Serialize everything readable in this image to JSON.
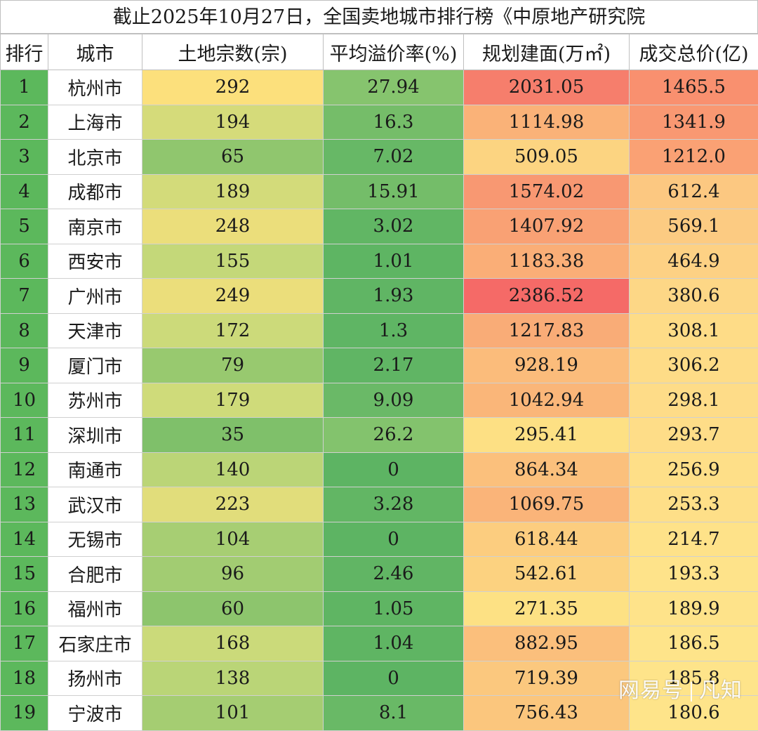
{
  "title": "截止2025年10月27日，全国卖地城市排行榜《中原地产研究院",
  "headers": [
    "排行",
    "城市",
    "土地宗数(宗)",
    "平均溢价率(%)",
    "规划建面(万㎡)",
    "成交总价(亿)"
  ],
  "rows": [
    {
      "rank": "1",
      "city": "杭州市",
      "parcels": "292",
      "premium": "27.94",
      "area": "2031.05",
      "total": "1465.5"
    },
    {
      "rank": "2",
      "city": "上海市",
      "parcels": "194",
      "premium": "16.3",
      "area": "1114.98",
      "total": "1341.9"
    },
    {
      "rank": "3",
      "city": "北京市",
      "parcels": "65",
      "premium": "7.02",
      "area": "509.05",
      "total": "1212.0"
    },
    {
      "rank": "4",
      "city": "成都市",
      "parcels": "189",
      "premium": "15.91",
      "area": "1574.02",
      "total": "612.4"
    },
    {
      "rank": "5",
      "city": "南京市",
      "parcels": "248",
      "premium": "3.02",
      "area": "1407.92",
      "total": "569.1"
    },
    {
      "rank": "6",
      "city": "西安市",
      "parcels": "155",
      "premium": "1.01",
      "area": "1183.38",
      "total": "464.9"
    },
    {
      "rank": "7",
      "city": "广州市",
      "parcels": "249",
      "premium": "1.93",
      "area": "2386.52",
      "total": "380.6"
    },
    {
      "rank": "8",
      "city": "天津市",
      "parcels": "172",
      "premium": "1.3",
      "area": "1217.83",
      "total": "308.1"
    },
    {
      "rank": "9",
      "city": "厦门市",
      "parcels": "79",
      "premium": "2.17",
      "area": "928.19",
      "total": "306.2"
    },
    {
      "rank": "10",
      "city": "苏州市",
      "parcels": "179",
      "premium": "9.09",
      "area": "1042.94",
      "total": "298.1"
    },
    {
      "rank": "11",
      "city": "深圳市",
      "parcels": "35",
      "premium": "26.2",
      "area": "295.41",
      "total": "293.7"
    },
    {
      "rank": "12",
      "city": "南通市",
      "parcels": "140",
      "premium": "0",
      "area": "864.34",
      "total": "256.9"
    },
    {
      "rank": "13",
      "city": "武汉市",
      "parcels": "223",
      "premium": "3.28",
      "area": "1069.75",
      "total": "253.3"
    },
    {
      "rank": "14",
      "city": "无锡市",
      "parcels": "104",
      "premium": "0",
      "area": "618.44",
      "total": "214.7"
    },
    {
      "rank": "15",
      "city": "合肥市",
      "parcels": "96",
      "premium": "2.46",
      "area": "542.61",
      "total": "193.3"
    },
    {
      "rank": "16",
      "city": "福州市",
      "parcels": "60",
      "premium": "1.05",
      "area": "271.35",
      "total": "189.9"
    },
    {
      "rank": "17",
      "city": "石家庄市",
      "parcels": "168",
      "premium": "1.04",
      "area": "882.95",
      "total": "186.5"
    },
    {
      "rank": "18",
      "city": "扬州市",
      "parcels": "138",
      "premium": "0",
      "area": "719.39",
      "total": "185.8"
    },
    {
      "rank": "19",
      "city": "宁波市",
      "parcels": "101",
      "premium": "8.1",
      "area": "756.43",
      "total": "180.6"
    }
  ],
  "colors": {
    "rank": "#5cb85c",
    "premium_high": "#86c46e",
    "premium_low": "#5db463",
    "parcels_low": "#7fc06a",
    "parcels_mid": "#c9da7a",
    "parcels_high": "#fce07c",
    "area_low": "#fde184",
    "area_high": "#f56a67",
    "total_low": "#fee48a",
    "total_high": "#f9906f"
  },
  "watermark": {
    "brand": "网易号",
    "author": "凡知"
  }
}
